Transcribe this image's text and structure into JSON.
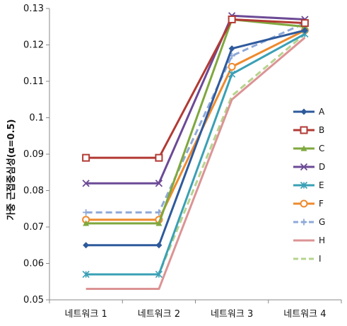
{
  "chart_data": {
    "type": "line",
    "title": "",
    "xlabel": "",
    "ylabel": "가중 근접중심성(α=0.5)",
    "categories": [
      "네트워크 1",
      "네트워크 2",
      "네트워크 3",
      "네트워크 4"
    ],
    "ylim": [
      0.05,
      0.13
    ],
    "yticks": [
      "0.05",
      "0.06",
      "0.07",
      "0.08",
      "0.09",
      "0.1",
      "0.11",
      "0.12",
      "0.13"
    ],
    "grid": false,
    "legend_position": "right",
    "series": [
      {
        "name": "A",
        "values": [
          0.065,
          0.065,
          0.119,
          0.124
        ],
        "color": "#2e5a9c",
        "marker": "diamond",
        "dash": false
      },
      {
        "name": "B",
        "values": [
          0.089,
          0.089,
          0.127,
          0.126
        ],
        "color": "#b23a34",
        "marker": "square",
        "dash": false
      },
      {
        "name": "C",
        "values": [
          0.071,
          0.071,
          0.127,
          0.125
        ],
        "color": "#7fa83e",
        "marker": "triangle",
        "dash": false
      },
      {
        "name": "D",
        "values": [
          0.082,
          0.082,
          0.128,
          0.127
        ],
        "color": "#6c4a96",
        "marker": "x",
        "dash": false
      },
      {
        "name": "E",
        "values": [
          0.057,
          0.057,
          0.112,
          0.123
        ],
        "color": "#3aa0b5",
        "marker": "star",
        "dash": false
      },
      {
        "name": "F",
        "values": [
          0.072,
          0.072,
          0.114,
          0.124
        ],
        "color": "#ee8a2e",
        "marker": "circle",
        "dash": false
      },
      {
        "name": "G",
        "values": [
          0.074,
          0.074,
          0.117,
          0.126
        ],
        "color": "#8fa9d8",
        "marker": "plus",
        "dash": true
      },
      {
        "name": "H",
        "values": [
          0.053,
          0.053,
          0.105,
          0.122
        ],
        "color": "#dc9394",
        "marker": "none",
        "dash": false
      },
      {
        "name": "I",
        "values": [
          0.057,
          0.057,
          0.106,
          0.123
        ],
        "color": "#b6d48e",
        "marker": "none",
        "dash": true
      }
    ]
  }
}
